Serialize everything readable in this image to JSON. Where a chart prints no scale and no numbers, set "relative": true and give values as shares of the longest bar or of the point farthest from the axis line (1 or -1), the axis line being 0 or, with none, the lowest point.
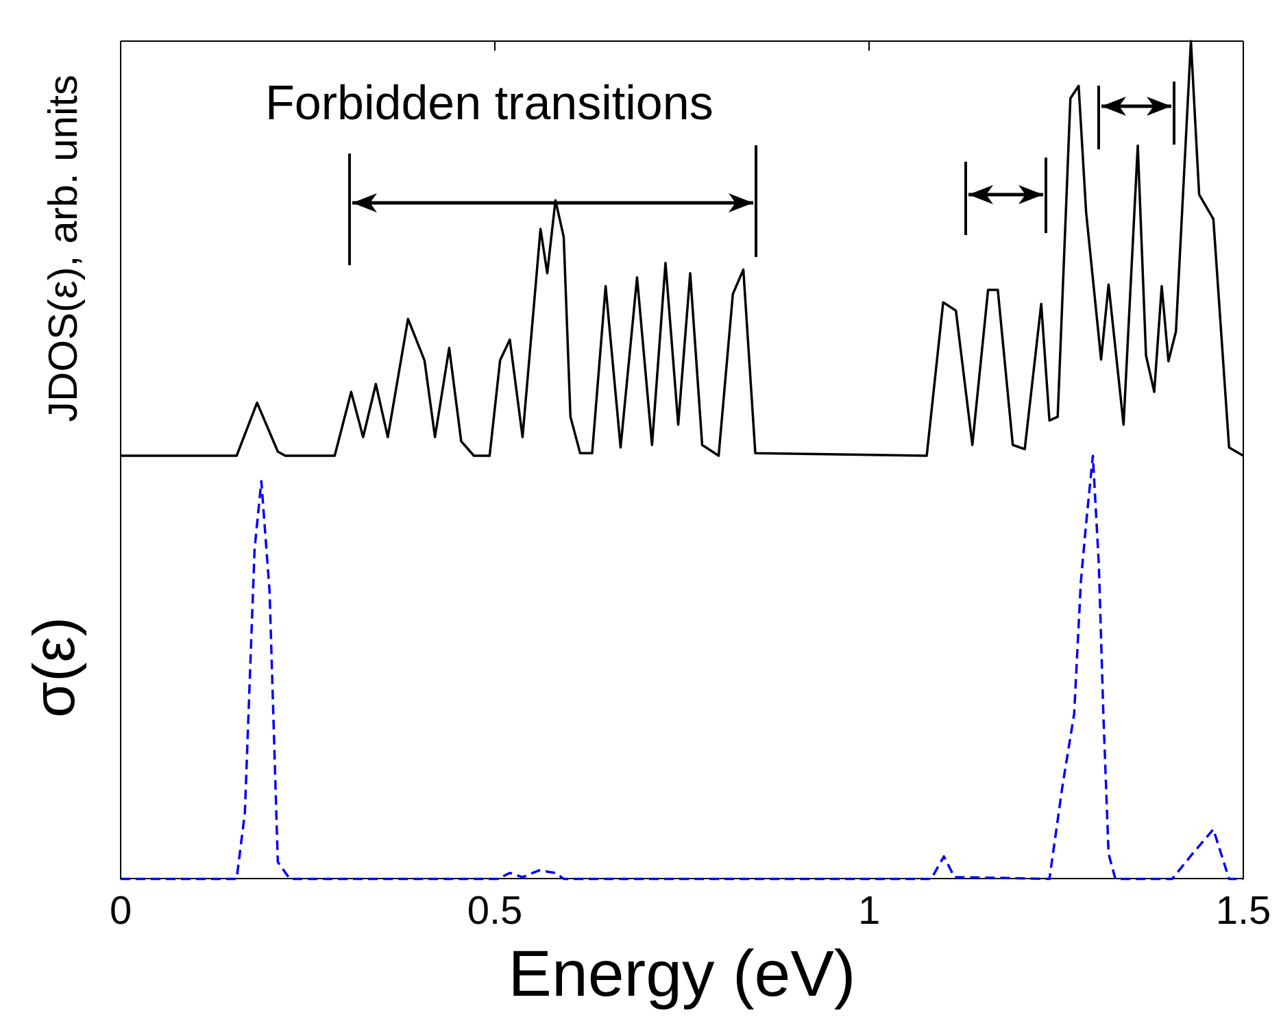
{
  "chart_data": [
    {
      "type": "line",
      "ylabel": "JDOS(ε), arb. units",
      "annotations": [
        "Forbidden transitions"
      ],
      "relative": true,
      "xlim": [
        0,
        1.5
      ],
      "xticks": [
        0,
        0.5,
        1,
        1.5
      ],
      "tick_labels": false,
      "grid": false,
      "marker": "none",
      "line_style": "solid",
      "x": [
        0,
        0.155,
        0.1823,
        0.21,
        0.22,
        0.286,
        0.308,
        0.324,
        0.341,
        0.357,
        0.384,
        0.406,
        0.42,
        0.439,
        0.455,
        0.472,
        0.493,
        0.507,
        0.52,
        0.537,
        0.561,
        0.57,
        0.581,
        0.592,
        0.601,
        0.614,
        0.63,
        0.648,
        0.668,
        0.69,
        0.71,
        0.728,
        0.745,
        0.761,
        0.777,
        0.799,
        0.818,
        0.832,
        0.848,
        1.077,
        1.099,
        1.116,
        1.138,
        1.159,
        1.172,
        1.192,
        1.208,
        1.23,
        1.241,
        1.252,
        1.269,
        1.28,
        1.29,
        1.31,
        1.32,
        1.34,
        1.359,
        1.37,
        1.381,
        1.391,
        1.4,
        1.41,
        1.43,
        1.441,
        1.46,
        1.481,
        1.5
      ],
      "series": [
        {
          "color": "#000000",
          "values": [
            0,
            0,
            0.128,
            0.01,
            0,
            0,
            0.154,
            0.045,
            0.173,
            0.045,
            0.33,
            0.23,
            0.045,
            0.26,
            0.035,
            0,
            0,
            0.23,
            0.28,
            0.045,
            0.547,
            0.44,
            0.616,
            0.528,
            0.094,
            0.006,
            0.006,
            0.409,
            0.02,
            0.43,
            0.026,
            0.465,
            0.075,
            0.44,
            0.026,
            0,
            0.39,
            0.449,
            0.006,
            0,
            0.37,
            0.35,
            0.026,
            0.4,
            0.4,
            0.026,
            0.016,
            0.366,
            0.085,
            0.094,
            0.862,
            0.892,
            0.587,
            0.232,
            0.413,
            0.075,
            0.748,
            0.242,
            0.154,
            0.409,
            0.228,
            0.3,
            1,
            0.63,
            0.571,
            0.02,
            0
          ]
        }
      ]
    },
    {
      "type": "line",
      "ylabel": "σ(ε)",
      "xlabel": "Energy (eV)",
      "relative": true,
      "xlim": [
        0,
        1.5
      ],
      "xticks": [
        0,
        0.5,
        1,
        1.5
      ],
      "tick_labels": "x",
      "grid": false,
      "marker": "none",
      "line_style": "dashed",
      "x": [
        0,
        0.155,
        0.166,
        0.179,
        0.188,
        0.199,
        0.21,
        0.226,
        0.504,
        0.52,
        0.537,
        0.559,
        0.581,
        0.592,
        1.083,
        1.1,
        1.114,
        1.241,
        1.258,
        1.274,
        1.283,
        1.29,
        1.299,
        1.307,
        1.313,
        1.32,
        1.329,
        1.405,
        1.432,
        1.46,
        1.481,
        1.5
      ],
      "series": [
        {
          "color": "#0000ff",
          "values": [
            0,
            0,
            0.156,
            0.78,
            0.94,
            0.68,
            0.04,
            0,
            0,
            0.014,
            0.004,
            0.02,
            0.014,
            0,
            0,
            0.053,
            0.004,
            0,
            0.215,
            0.39,
            0.703,
            0.84,
            1,
            0.742,
            0.39,
            0.059,
            0,
            0,
            0.059,
            0.117,
            0,
            0
          ]
        }
      ]
    }
  ]
}
